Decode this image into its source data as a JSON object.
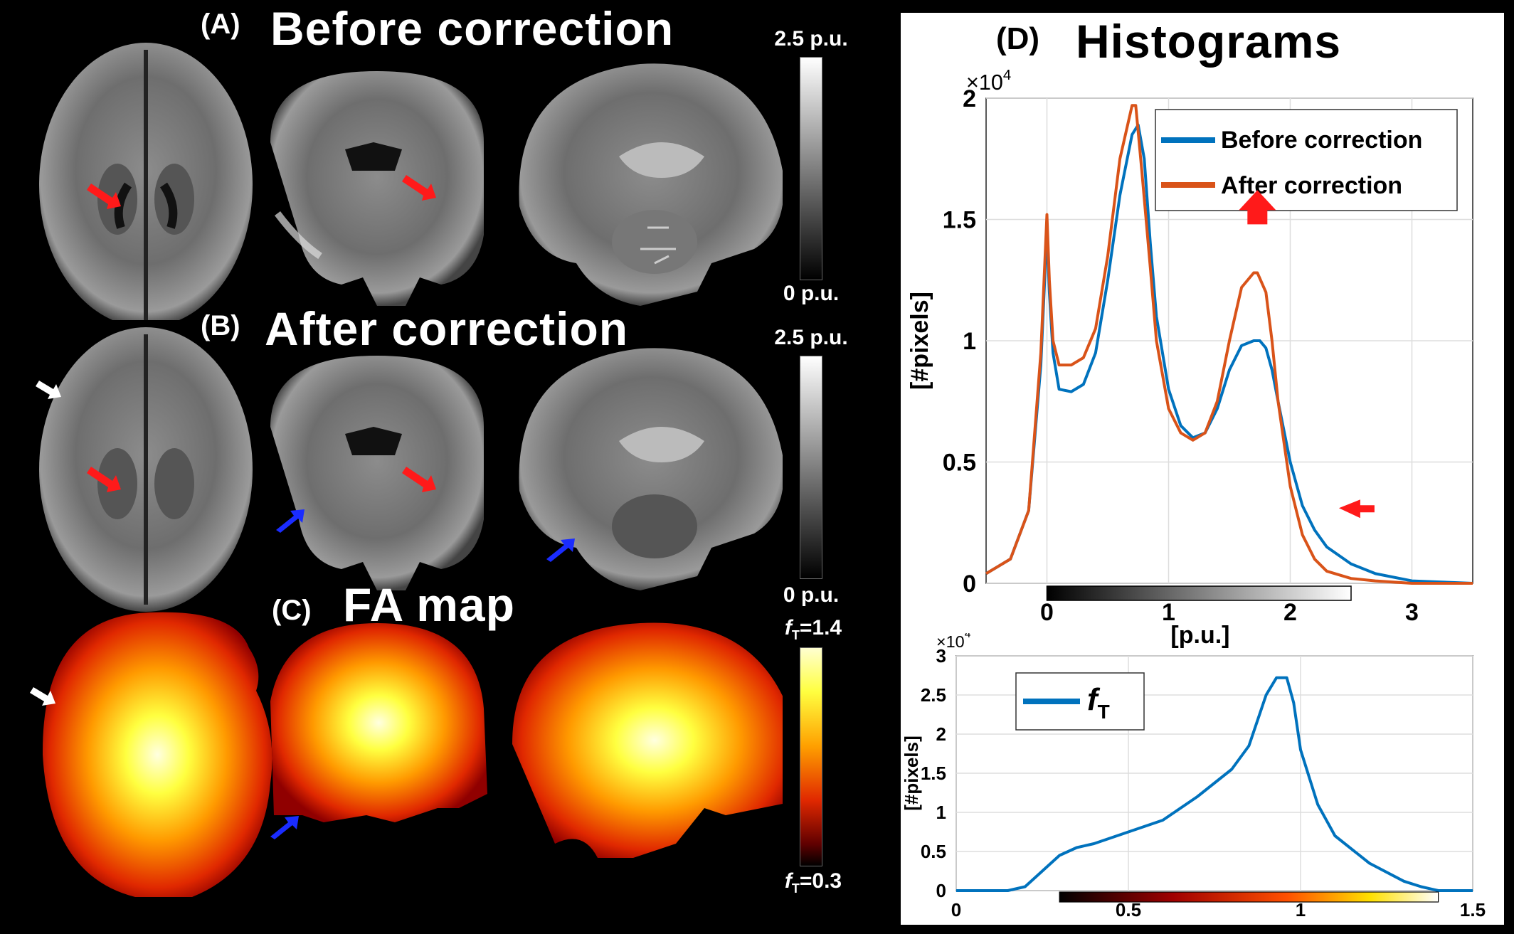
{
  "panels": {
    "A": {
      "letter": "(A)",
      "title": "Before correction",
      "cbar_max": "2.5 p.u.",
      "cbar_min": "0 p.u."
    },
    "B": {
      "letter": "(B)",
      "title": "After correction",
      "cbar_max": "2.5 p.u.",
      "cbar_min": "0 p.u."
    },
    "C": {
      "letter": "(C)",
      "title": "FA map",
      "cbar_max": "=1.4",
      "cbar_min": "=0.3",
      "cbar_var": "f",
      "cbar_sub": "T"
    },
    "D": {
      "letter": "(D)",
      "title": "Histograms"
    }
  },
  "colors": {
    "before": "#0072BD",
    "after": "#D95319",
    "arrow_red": "#ff1a1a",
    "arrow_blue": "#1a2cff",
    "arrow_white": "#ffffff"
  },
  "chart_data": [
    {
      "type": "line",
      "xlabel": "[p.u.]",
      "ylabel": "[#pixels]",
      "exponent": "×10",
      "exponent_power": "4",
      "xlim": [
        -0.5,
        3.5
      ],
      "ylim": [
        0,
        2
      ],
      "xticks": [
        "0",
        "1",
        "2",
        "3"
      ],
      "yticks": [
        "0",
        "0.5",
        "1",
        "1.5",
        "2"
      ],
      "grid": true,
      "legend_position": "top-right",
      "series": [
        {
          "name": "Before correction",
          "x": [
            -0.5,
            -0.3,
            -0.15,
            -0.05,
            0,
            0.02,
            0.05,
            0.1,
            0.2,
            0.3,
            0.4,
            0.5,
            0.6,
            0.7,
            0.75,
            0.8,
            0.85,
            0.9,
            1.0,
            1.1,
            1.2,
            1.3,
            1.4,
            1.5,
            1.6,
            1.7,
            1.75,
            1.8,
            1.85,
            1.9,
            2.0,
            2.1,
            2.2,
            2.3,
            2.5,
            2.7,
            3.0,
            3.5
          ],
          "y": [
            0.04,
            0.1,
            0.3,
            0.9,
            1.46,
            1.2,
            0.95,
            0.8,
            0.79,
            0.82,
            0.95,
            1.25,
            1.6,
            1.85,
            1.89,
            1.75,
            1.4,
            1.1,
            0.8,
            0.65,
            0.6,
            0.62,
            0.72,
            0.88,
            0.98,
            1.0,
            1.0,
            0.97,
            0.88,
            0.75,
            0.5,
            0.32,
            0.22,
            0.15,
            0.08,
            0.04,
            0.01,
            0
          ]
        },
        {
          "name": "After correction",
          "x": [
            -0.5,
            -0.3,
            -0.15,
            -0.05,
            0,
            0.02,
            0.05,
            0.1,
            0.2,
            0.3,
            0.4,
            0.5,
            0.6,
            0.7,
            0.73,
            0.78,
            0.85,
            0.9,
            1.0,
            1.1,
            1.2,
            1.3,
            1.4,
            1.5,
            1.6,
            1.7,
            1.73,
            1.8,
            1.85,
            1.9,
            2.0,
            2.1,
            2.2,
            2.3,
            2.5,
            2.7,
            3.0,
            3.5
          ],
          "y": [
            0.04,
            0.1,
            0.3,
            0.95,
            1.52,
            1.25,
            1.0,
            0.9,
            0.9,
            0.93,
            1.05,
            1.35,
            1.75,
            1.97,
            1.97,
            1.7,
            1.3,
            1.0,
            0.72,
            0.62,
            0.59,
            0.62,
            0.75,
            1.0,
            1.22,
            1.28,
            1.28,
            1.2,
            1.0,
            0.75,
            0.4,
            0.2,
            0.1,
            0.05,
            0.02,
            0.01,
            0,
            0
          ]
        }
      ]
    },
    {
      "type": "line",
      "ylabel": "[#pixels]",
      "exponent": "×10",
      "exponent_power": "4",
      "xlim": [
        0,
        1.5
      ],
      "ylim": [
        0,
        3
      ],
      "xticks": [
        "0",
        "0.5",
        "1",
        "1.5"
      ],
      "yticks": [
        "0",
        "0.5",
        "1",
        "1.5",
        "2",
        "2.5",
        "3"
      ],
      "grid": true,
      "legend_position": "top-left",
      "series": [
        {
          "name": "f",
          "name_sub": "T",
          "x": [
            0,
            0.15,
            0.2,
            0.25,
            0.3,
            0.35,
            0.4,
            0.5,
            0.6,
            0.7,
            0.8,
            0.85,
            0.9,
            0.93,
            0.96,
            0.98,
            1.0,
            1.05,
            1.1,
            1.2,
            1.3,
            1.35,
            1.38,
            1.4,
            1.45,
            1.5
          ],
          "y": [
            0,
            0,
            0.05,
            0.25,
            0.45,
            0.55,
            0.6,
            0.75,
            0.9,
            1.2,
            1.55,
            1.85,
            2.5,
            2.72,
            2.72,
            2.4,
            1.8,
            1.1,
            0.7,
            0.35,
            0.12,
            0.05,
            0.02,
            0,
            0,
            0
          ]
        }
      ]
    }
  ]
}
